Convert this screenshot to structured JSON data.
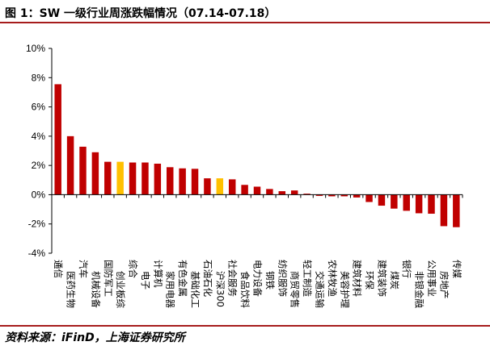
{
  "header": {
    "title": "图 1：SW 一级行业周涨跌幅情况（07.14-07.18）"
  },
  "footer": {
    "source": "资料来源：iFinD，上海证券研究所"
  },
  "colors": {
    "rule": "#a61c1c",
    "bar_default": "#c00000",
    "bar_highlight": "#ffc000",
    "axis": "#000000"
  },
  "chart_data": {
    "type": "bar",
    "title": "SW 一级行业周涨跌幅情况（07.14-07.18）",
    "xlabel": "",
    "ylabel": "",
    "ylim": [
      -4,
      10
    ],
    "yticks": [
      -4,
      -2,
      0,
      2,
      4,
      6,
      8,
      10
    ],
    "ytick_labels": [
      "-4%",
      "-2%",
      "0%",
      "2%",
      "4%",
      "6%",
      "8%",
      "10%"
    ],
    "grid": false,
    "legend": "none",
    "categories": [
      "通信",
      "医药生物",
      "汽车",
      "机械设备",
      "国防军工",
      "创业板综",
      "综合",
      "电子",
      "计算机",
      "家用电器",
      "有色金属",
      "基础化工",
      "石油石化",
      "沪深300",
      "社会服务",
      "食品饮料",
      "电力设备",
      "钢铁",
      "纺织服饰",
      "商贸零售",
      "轻工制造",
      "交通运输",
      "农林牧渔",
      "美容护理",
      "建筑材料",
      "环保",
      "建筑装饰",
      "煤炭",
      "银行",
      "非银金融",
      "公用事业",
      "房地产",
      "传媒"
    ],
    "values": [
      7.55,
      4.0,
      3.28,
      2.9,
      2.25,
      2.25,
      2.2,
      2.2,
      2.12,
      1.88,
      1.8,
      1.77,
      1.12,
      1.12,
      1.05,
      0.67,
      0.55,
      0.39,
      0.24,
      0.29,
      0.07,
      -0.08,
      -0.11,
      -0.11,
      -0.19,
      -0.5,
      -0.75,
      -0.95,
      -1.1,
      -1.27,
      -1.3,
      -2.15,
      -2.22
    ],
    "highlight_categories": [
      "创业板综",
      "沪深300"
    ]
  }
}
